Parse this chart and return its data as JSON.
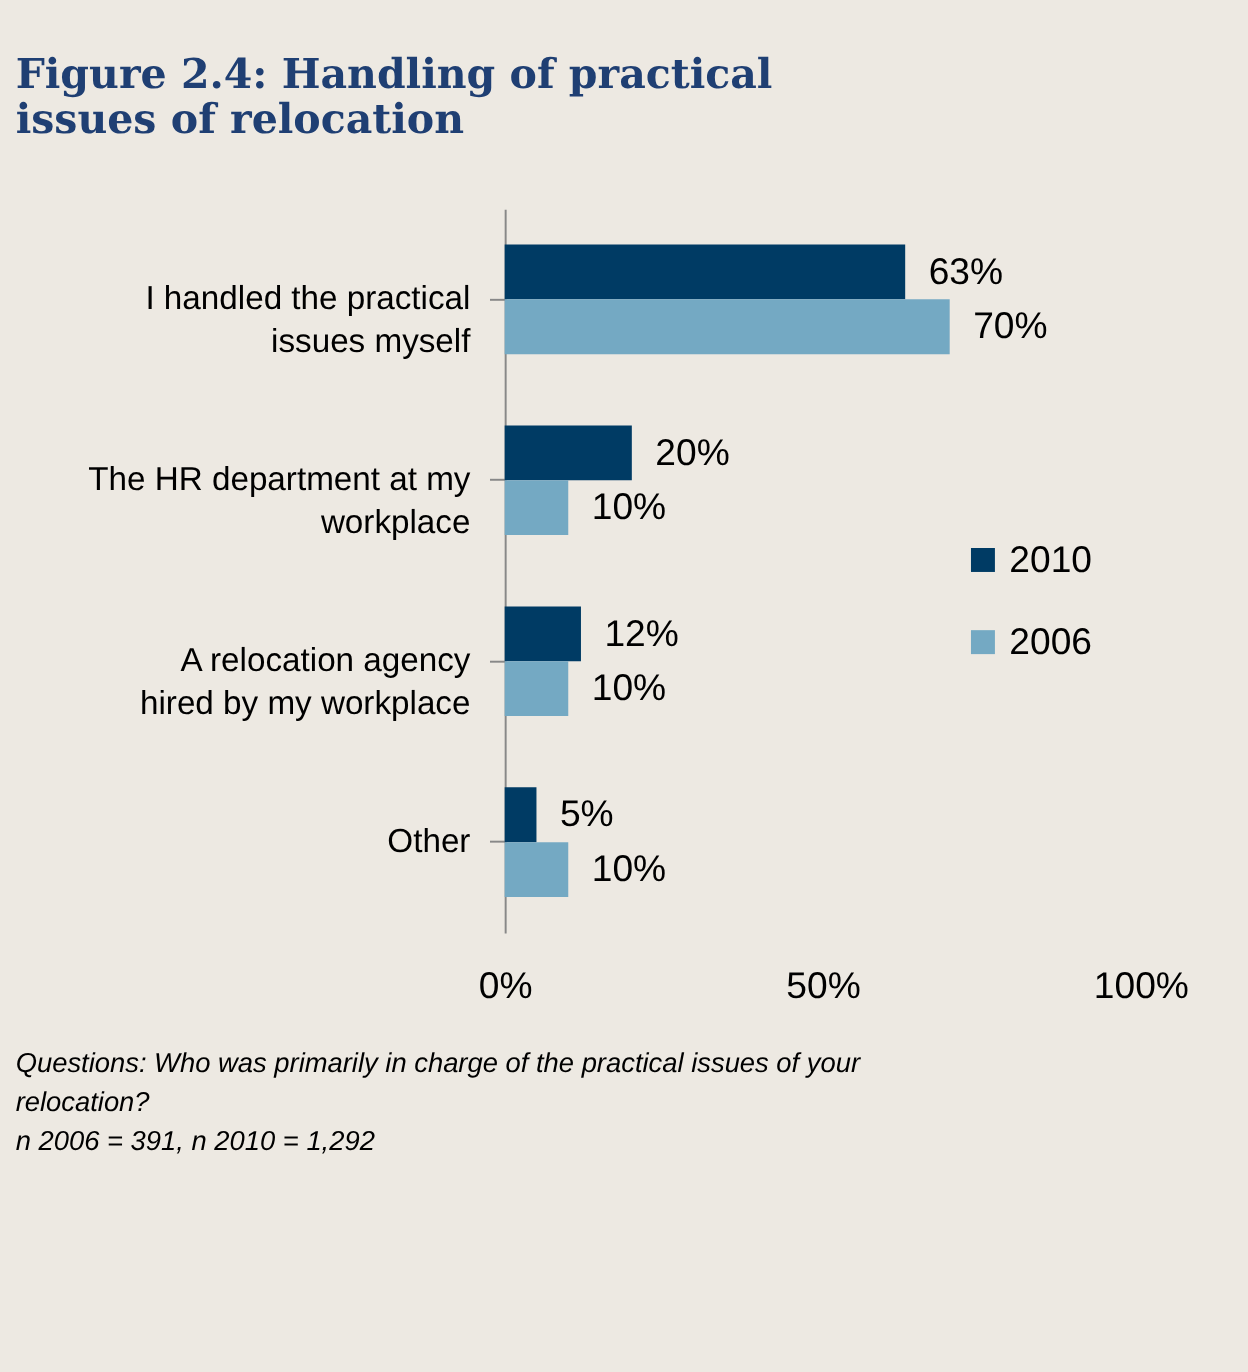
{
  "chart_data": {
    "type": "bar",
    "orientation": "horizontal",
    "title": "Figure 2.4: Handling of practical issues of relocation",
    "categories": [
      "I handled the practical issues myself",
      "The HR department at my workplace",
      "A relocation agency hired by my workplace",
      "Other"
    ],
    "series": [
      {
        "name": "2010",
        "color": "#003b64",
        "values": [
          63,
          20,
          12,
          5
        ],
        "value_labels": [
          "63%",
          "20%",
          "12%",
          "5%"
        ]
      },
      {
        "name": "2006",
        "color": "#74a9c3",
        "values": [
          70,
          10,
          10,
          10
        ],
        "value_labels": [
          "70%",
          "10%",
          "10%",
          "10%"
        ]
      }
    ],
    "xlim": [
      0,
      100
    ],
    "xticks": [
      {
        "value": 0,
        "label": "0%"
      },
      {
        "value": 50,
        "label": "50%"
      },
      {
        "value": 100,
        "label": "100%"
      }
    ],
    "grid": false,
    "legend": "right",
    "annotations": [
      "Questions: Who was primarily  in charge of the practical issues of your relocation?",
      "n 2006 = 391,  n 2010 = 1,292"
    ]
  }
}
